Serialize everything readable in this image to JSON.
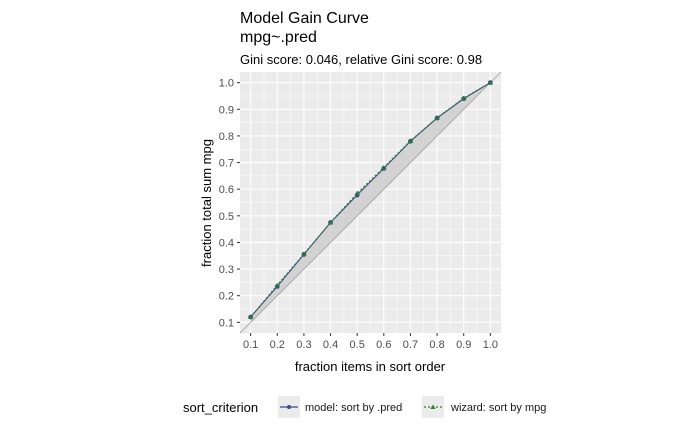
{
  "chart_data": {
    "type": "line",
    "title": "Model Gain Curve",
    "subtitle": "mpg~.pred",
    "caption": "Gini score: 0.046, relative Gini score: 0.98",
    "xlabel": "fraction items in sort order",
    "ylabel": "fraction total sum mpg",
    "xlim": [
      0.06,
      1.04
    ],
    "ylim": [
      0.06,
      1.04
    ],
    "x_ticks": [
      "0.1",
      "0.2",
      "0.3",
      "0.4",
      "0.5",
      "0.6",
      "0.7",
      "0.8",
      "0.9",
      "1.0"
    ],
    "y_ticks": [
      "0.1",
      "0.2",
      "0.3",
      "0.4",
      "0.5",
      "0.6",
      "0.7",
      "0.8",
      "0.9",
      "1.0"
    ],
    "grid": true,
    "legend_title": "sort_criterion",
    "legend_position": "bottom",
    "x": [
      0.1,
      0.2,
      0.3,
      0.4,
      0.5,
      0.6,
      0.7,
      0.8,
      0.9,
      1.0
    ],
    "series": [
      {
        "name": "model: sort by .pred",
        "color": "#3a4a8c",
        "values": [
          0.12,
          0.235,
          0.355,
          0.475,
          0.578,
          0.678,
          0.78,
          0.867,
          0.94,
          1.0
        ]
      },
      {
        "name": "wizard: sort by mpg",
        "color": "#2e7d32",
        "values": [
          0.12,
          0.24,
          0.357,
          0.475,
          0.585,
          0.682,
          0.782,
          0.868,
          0.942,
          1.0
        ]
      }
    ],
    "colors": {
      "panel_bg": "#ebebeb",
      "grid_major": "#ffffff",
      "ribbon": "#cccccc",
      "diagonal": "#a0a0a0"
    }
  }
}
